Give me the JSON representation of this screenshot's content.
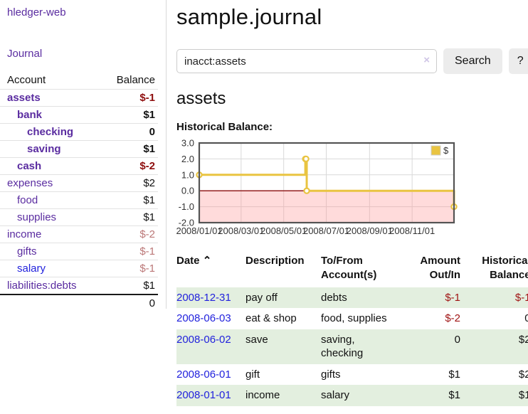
{
  "colors": {
    "purple": "#5a2ca0",
    "blue": "#2222dd",
    "neg": "#a01515",
    "negstrong": "#8e0e0e",
    "rose": "#bb7777",
    "rowgreen": "#e3efdf"
  },
  "app": {
    "title": "hledger-web",
    "nav_journal": "Journal"
  },
  "sidebar": {
    "header": {
      "account": "Account",
      "balance": "Balance"
    },
    "accounts": [
      {
        "name": "assets",
        "indent": 0,
        "bold": true,
        "link": "purple",
        "balance": "$-1",
        "balance_style": "negstrong"
      },
      {
        "name": "bank",
        "indent": 1,
        "bold": true,
        "link": "purple",
        "balance": "$1",
        "balance_style": "black"
      },
      {
        "name": "checking",
        "indent": 2,
        "bold": true,
        "link": "purple",
        "balance": "0",
        "balance_style": "black"
      },
      {
        "name": "saving",
        "indent": 2,
        "bold": true,
        "link": "purple",
        "balance": "$1",
        "balance_style": "black"
      },
      {
        "name": "cash",
        "indent": 1,
        "bold": true,
        "link": "purple",
        "balance": "$-2",
        "balance_style": "negstrong"
      },
      {
        "name": "expenses",
        "indent": 0,
        "bold": false,
        "link": "purple",
        "balance": "$2",
        "balance_style": "black"
      },
      {
        "name": "food",
        "indent": 1,
        "bold": false,
        "link": "purple",
        "balance": "$1",
        "balance_style": "black"
      },
      {
        "name": "supplies",
        "indent": 1,
        "bold": false,
        "link": "purple",
        "balance": "$1",
        "balance_style": "black"
      },
      {
        "name": "income",
        "indent": 0,
        "bold": false,
        "link": "purple",
        "balance": "$-2",
        "balance_style": "rose"
      },
      {
        "name": "gifts",
        "indent": 1,
        "bold": false,
        "link": "purple",
        "balance": "$-1",
        "balance_style": "rose"
      },
      {
        "name": "salary",
        "indent": 1,
        "bold": false,
        "link": "blue",
        "balance": "$-1",
        "balance_style": "rose"
      },
      {
        "name": "liabilities:debts",
        "indent": 0,
        "bold": false,
        "link": "purple",
        "balance": "$1",
        "balance_style": "black"
      }
    ],
    "total": "0"
  },
  "main": {
    "title": "sample.journal",
    "search": {
      "value": "inacct:assets",
      "clear_icon": "×",
      "button_label": "Search",
      "help_label": "?"
    },
    "account_heading": "assets",
    "chart_label": "Historical Balance:"
  },
  "chart_data": {
    "type": "line",
    "step": true,
    "title": "Historical Balance",
    "series": [
      {
        "name": "$",
        "color": "#e9c441",
        "points": [
          {
            "x": "2008-01-01",
            "y": 1
          },
          {
            "x": "2008-06-01",
            "y": 2
          },
          {
            "x": "2008-06-02",
            "y": 2
          },
          {
            "x": "2008-06-03",
            "y": 0
          },
          {
            "x": "2008-12-31",
            "y": -1
          }
        ]
      }
    ],
    "xlim": [
      "2008-01-01",
      "2008-12-31"
    ],
    "ylim": [
      -2,
      3
    ],
    "x_ticks": [
      {
        "x": "2008-01-01",
        "label": "2008/01/01"
      },
      {
        "x": "2008-03-01",
        "label": "2008/03/01"
      },
      {
        "x": "2008-05-01",
        "label": "2008/05/01"
      },
      {
        "x": "2008-07-01",
        "label": "2008/07/01"
      },
      {
        "x": "2008-09-01",
        "label": "2008/09/01"
      },
      {
        "x": "2008-11-01",
        "label": "2008/11/01"
      }
    ],
    "y_ticks": [
      {
        "v": 3,
        "label": "3.0"
      },
      {
        "v": 2,
        "label": "2.0"
      },
      {
        "v": 1,
        "label": "1.0"
      },
      {
        "v": 0,
        "label": "0.0"
      },
      {
        "v": -1,
        "label": "-1.0"
      },
      {
        "v": -2,
        "label": "-2.0"
      }
    ],
    "grid": true,
    "legend_position": "top-right",
    "legend": [
      "$"
    ],
    "negative_region_color": "rgba(255,145,145,0.33)",
    "zero_line_color": "#8b0e0e",
    "grid_color": "#d9d9d9",
    "border_color": "#545454"
  },
  "table": {
    "headers": {
      "date": "Date",
      "sort_icon": "⌃",
      "description": "Description",
      "accounts": "To/From Account(s)",
      "amount": "Amount Out/In",
      "balance": "Historical Balance"
    },
    "rows": [
      {
        "date": "2008-12-31",
        "description": "pay off",
        "accounts": "debts",
        "amount": "$-1",
        "amount_neg": true,
        "balance": "$-1",
        "balance_neg": true
      },
      {
        "date": "2008-06-03",
        "description": "eat & shop",
        "accounts": "food, supplies",
        "amount": "$-2",
        "amount_neg": true,
        "balance": "0",
        "balance_neg": false
      },
      {
        "date": "2008-06-02",
        "description": "save",
        "accounts": "saving, checking",
        "amount": "0",
        "amount_neg": false,
        "balance": "$2",
        "balance_neg": false
      },
      {
        "date": "2008-06-01",
        "description": "gift",
        "accounts": "gifts",
        "amount": "$1",
        "amount_neg": false,
        "balance": "$2",
        "balance_neg": false
      },
      {
        "date": "2008-01-01",
        "description": "income",
        "accounts": "salary",
        "amount": "$1",
        "amount_neg": false,
        "balance": "$1",
        "balance_neg": false
      }
    ]
  }
}
